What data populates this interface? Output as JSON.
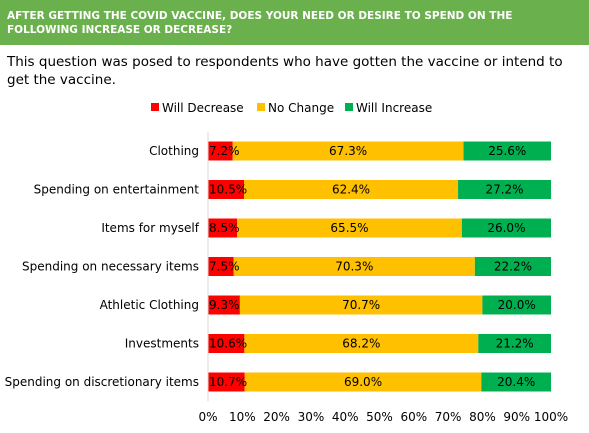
{
  "header": {
    "title": "AFTER GETTING THE COVID VACCINE, DOES YOUR NEED OR DESIRE TO SPEND ON THE FOLLOWING INCREASE OR DECREASE?"
  },
  "subtitle": "This question was posed to respondents who have gotten the vaccine or intend to get the vaccine.",
  "chart_data": {
    "type": "bar",
    "orientation": "horizontal",
    "stacked": true,
    "percent_stacked": true,
    "categories": [
      "Clothing",
      "Spending on entertainment",
      "Items for myself",
      "Spending on necessary items",
      "Athletic Clothing",
      "Investments",
      "Spending on discretionary items"
    ],
    "series": [
      {
        "name": "Will Decrease",
        "color": "#ff0000",
        "values": [
          7.2,
          10.5,
          8.5,
          7.5,
          9.3,
          10.6,
          10.7
        ],
        "labels": [
          "7.2%",
          "10.5%",
          "8.5%",
          "7.5%",
          "9.3%",
          "10.6%",
          "10.7%"
        ]
      },
      {
        "name": "No Change",
        "color": "#ffc000",
        "values": [
          67.3,
          62.4,
          65.5,
          70.3,
          70.7,
          68.2,
          69.0
        ],
        "labels": [
          "67.3%",
          "62.4%",
          "65.5%",
          "70.3%",
          "70.7%",
          "68.2%",
          "69.0%"
        ]
      },
      {
        "name": "Will Increase",
        "color": "#00b050",
        "values": [
          25.6,
          27.2,
          26.0,
          22.2,
          20.0,
          21.2,
          20.4
        ],
        "labels": [
          "25.6%",
          "27.2%",
          "26.0%",
          "22.2%",
          "20.0%",
          "21.2%",
          "20.4%"
        ]
      }
    ],
    "xlim": [
      0,
      100
    ],
    "xticks": [
      "0%",
      "10%",
      "20%",
      "30%",
      "40%",
      "50%",
      "60%",
      "70%",
      "80%",
      "90%",
      "100%"
    ],
    "legend": "top",
    "grid": false
  }
}
